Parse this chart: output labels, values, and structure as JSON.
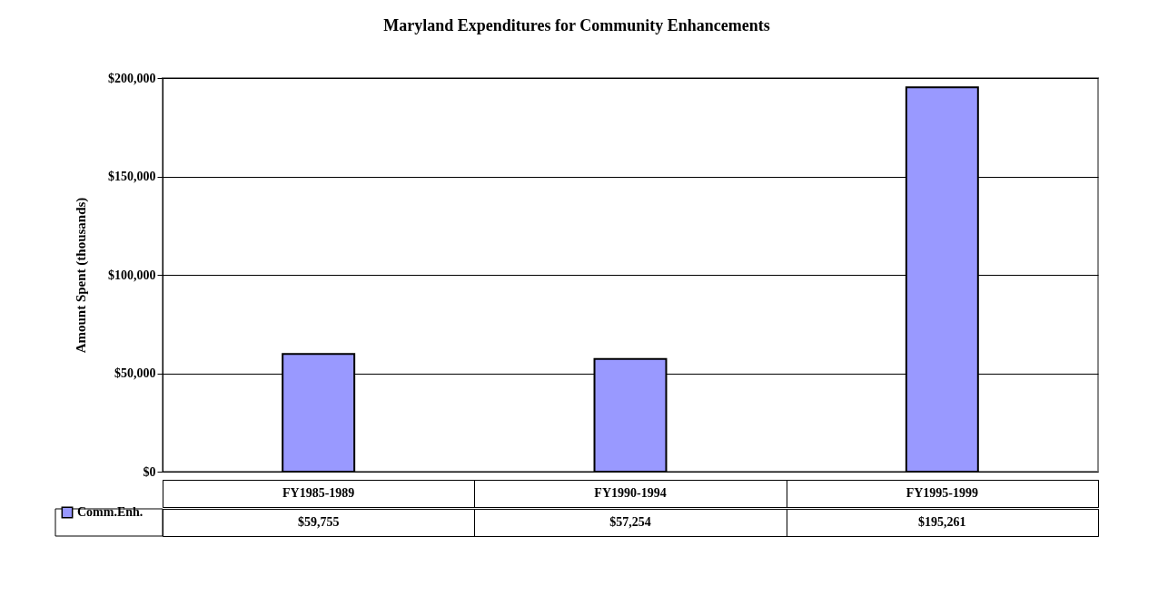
{
  "chart_data": {
    "type": "bar",
    "title": "Maryland Expenditures for Community Enhancements",
    "ylabel": "Amount Spent (thousands)",
    "categories": [
      "FY1985-1989",
      "FY1990-1994",
      "FY1995-1999"
    ],
    "series": [
      {
        "name": "Comm.Enh.",
        "color": "#9999ff",
        "values": [
          59755,
          57254,
          195261
        ],
        "value_labels": [
          "$59,755",
          "$57,254",
          "$195,261"
        ]
      }
    ],
    "ylim": [
      0,
      200000
    ],
    "yticks": [
      {
        "value": 0,
        "label": "$0"
      },
      {
        "value": 50000,
        "label": "$50,000"
      },
      {
        "value": 100000,
        "label": "$100,000"
      },
      {
        "value": 150000,
        "label": "$150,000"
      },
      {
        "value": 200000,
        "label": "$200,000"
      }
    ],
    "grid": "y",
    "legend": "bottom left"
  }
}
